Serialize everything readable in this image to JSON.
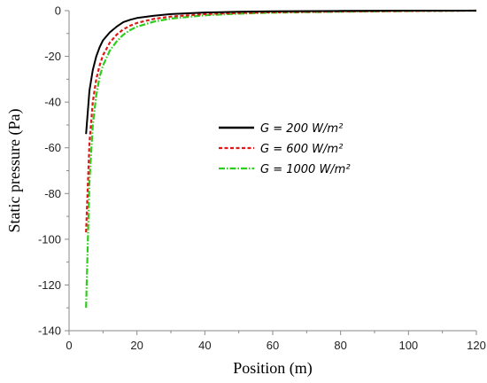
{
  "chart_data": {
    "type": "line",
    "xlabel": "Position (m)",
    "ylabel": "Static pressure (Pa)",
    "xlim": [
      0,
      120
    ],
    "ylim": [
      -140,
      0
    ],
    "xticks": [
      0,
      20,
      40,
      60,
      80,
      100,
      120
    ],
    "yticks": [
      0,
      -20,
      -40,
      -60,
      -80,
      -100,
      -120,
      -140
    ],
    "grid": false,
    "legend_position": "center-right",
    "series": [
      {
        "name": "G = 200 W/m²",
        "color": "#000000",
        "style": "solid",
        "x": [
          5,
          6,
          7,
          8,
          9,
          10,
          12,
          14,
          16,
          18,
          20,
          25,
          30,
          40,
          50,
          60,
          80,
          100,
          120
        ],
        "y": [
          -54,
          -35,
          -26,
          -20,
          -16,
          -13,
          -9.5,
          -7,
          -5,
          -4,
          -3.2,
          -2.2,
          -1.5,
          -0.8,
          -0.5,
          -0.3,
          -0.1,
          0,
          0
        ]
      },
      {
        "name": "G = 600 W/m²",
        "color": "#e01818",
        "style": "dashed",
        "x": [
          5,
          6,
          7,
          8,
          9,
          10,
          12,
          14,
          16,
          18,
          20,
          25,
          30,
          40,
          50,
          60,
          80,
          100,
          120
        ],
        "y": [
          -97,
          -58,
          -40,
          -30,
          -24,
          -19.5,
          -14,
          -10.5,
          -8.2,
          -6.6,
          -5.4,
          -3.6,
          -2.6,
          -1.5,
          -1,
          -0.7,
          -0.35,
          -0.15,
          0
        ]
      },
      {
        "name": "G = 1000 W/m²",
        "color": "#2ecc1c",
        "style": "dash-dot",
        "x": [
          5,
          6,
          7,
          8,
          9,
          10,
          12,
          14,
          16,
          18,
          20,
          25,
          30,
          40,
          50,
          60,
          80,
          100,
          120
        ],
        "y": [
          -130,
          -75,
          -50,
          -37,
          -29,
          -24,
          -17.5,
          -13.5,
          -10.5,
          -8.5,
          -7,
          -4.8,
          -3.5,
          -2,
          -1.3,
          -0.9,
          -0.45,
          -0.2,
          0
        ]
      }
    ]
  }
}
